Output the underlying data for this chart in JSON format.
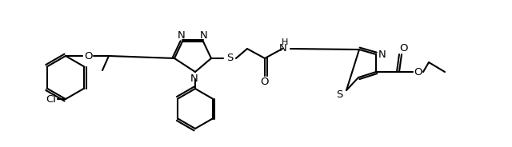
{
  "bg_color": "#ffffff",
  "line_color": "#000000",
  "lw": 1.5,
  "figsize": [
    6.4,
    1.84
  ],
  "dpi": 100,
  "xlim": [
    0,
    640
  ],
  "ylim": [
    0,
    184
  ]
}
